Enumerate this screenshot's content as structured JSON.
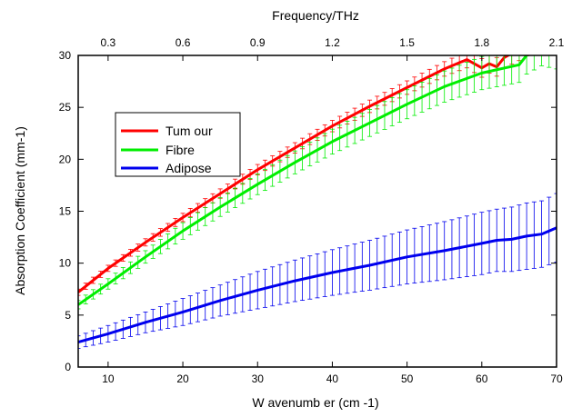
{
  "chart_data": {
    "type": "line",
    "xlabel": "W avenumb er (cm -1)",
    "ylabel": "Absorption Coefficient (mm-1)",
    "top_xlabel": "Frequency/THz",
    "xlim": [
      6,
      70
    ],
    "ylim": [
      0,
      30
    ],
    "x_ticks": [
      "10",
      "20",
      "30",
      "40",
      "50",
      "60",
      "70"
    ],
    "y_ticks": [
      "0",
      "5",
      "10",
      "15",
      "20",
      "25",
      "30"
    ],
    "top_ticks": [
      "0.3",
      "0.6",
      "0.9",
      "1.2",
      "1.5",
      "1.8",
      "2.1"
    ],
    "top_tick_positions": [
      10,
      20,
      30,
      40,
      50,
      60,
      70
    ],
    "legend_position": "upper-left",
    "grid": false,
    "series": [
      {
        "name": "Tum our",
        "color": "#ff0000",
        "x": [
          6,
          10,
          15,
          20,
          25,
          30,
          35,
          40,
          45,
          50,
          55,
          58,
          60,
          61,
          62,
          63,
          65,
          67,
          69
        ],
        "y": [
          7.2,
          9.5,
          12.0,
          14.4,
          16.7,
          19.0,
          21.1,
          23.2,
          25.1,
          26.9,
          28.7,
          29.6,
          28.8,
          29.2,
          28.9,
          29.8,
          30.6,
          31.5,
          32.6
        ],
        "error": [
          0.3,
          0.3,
          0.35,
          0.4,
          0.45,
          0.5,
          0.5,
          0.55,
          0.6,
          0.65,
          0.7,
          0.8,
          0.9,
          0.9,
          0.9,
          1.0,
          1.1,
          1.1,
          1.2
        ]
      },
      {
        "name": "Fibre",
        "color": "#00ee00",
        "x": [
          6,
          10,
          15,
          20,
          25,
          30,
          35,
          40,
          45,
          50,
          55,
          60,
          65,
          66,
          68,
          70
        ],
        "y": [
          6.0,
          8.0,
          10.6,
          13.1,
          15.4,
          17.6,
          19.7,
          21.7,
          23.5,
          25.3,
          27.0,
          28.3,
          29.1,
          30.0,
          30.8,
          30.6
        ],
        "error": [
          0.4,
          0.5,
          0.6,
          0.8,
          0.9,
          1.0,
          1.1,
          1.2,
          1.3,
          1.4,
          1.5,
          1.6,
          1.7,
          1.8,
          1.8,
          1.9
        ]
      },
      {
        "name": "Adipose",
        "color": "#0000ee",
        "x": [
          6,
          10,
          15,
          20,
          25,
          30,
          35,
          40,
          45,
          50,
          55,
          60,
          62,
          64,
          66,
          68,
          70
        ],
        "y": [
          2.4,
          3.2,
          4.3,
          5.3,
          6.4,
          7.4,
          8.3,
          9.1,
          9.8,
          10.6,
          11.2,
          11.9,
          12.2,
          12.3,
          12.6,
          12.8,
          13.4
        ],
        "error": [
          0.6,
          0.8,
          1.0,
          1.3,
          1.5,
          1.8,
          2.0,
          2.2,
          2.4,
          2.6,
          2.8,
          3.0,
          3.0,
          3.1,
          3.2,
          3.2,
          3.3
        ]
      }
    ]
  }
}
